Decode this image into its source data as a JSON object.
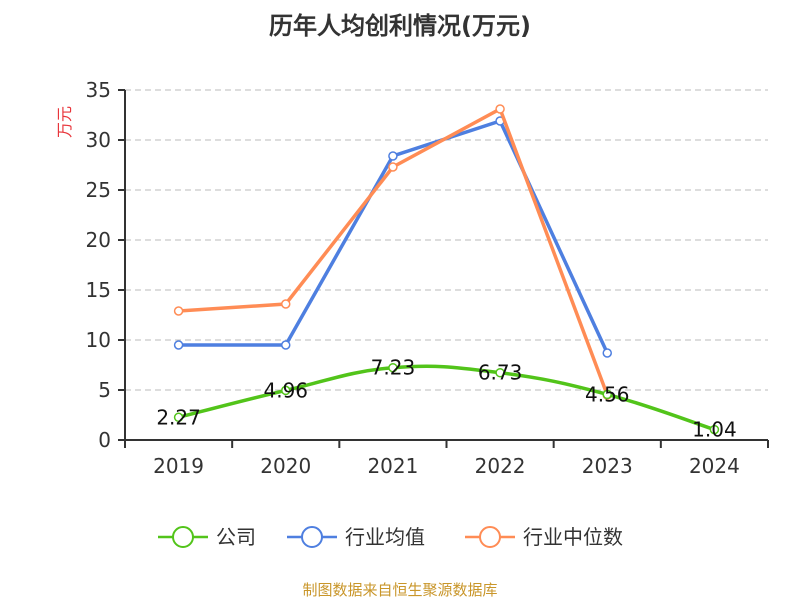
{
  "chart_data": {
    "type": "line",
    "title": "历年人均创利情况(万元)",
    "ylabel": "万元",
    "categories": [
      "2019",
      "2020",
      "2021",
      "2022",
      "2023",
      "2024"
    ],
    "ylim": [
      0,
      35
    ],
    "yticks": [
      0,
      5,
      10,
      15,
      20,
      25,
      30,
      35
    ],
    "grid": true,
    "legend_position": "bottom",
    "series": [
      {
        "name": "公司",
        "color": "#52c41a",
        "smooth": true,
        "show_labels": true,
        "values": [
          2.27,
          4.96,
          7.23,
          6.73,
          4.56,
          1.04
        ]
      },
      {
        "name": "行业均值",
        "color": "#4e7fe0",
        "values": [
          9.5,
          9.5,
          28.4,
          31.9,
          8.7,
          null
        ]
      },
      {
        "name": "行业中位数",
        "color": "#ff8c55",
        "values": [
          12.9,
          13.6,
          27.3,
          33.1,
          4.5,
          null
        ]
      }
    ]
  },
  "source": "制图数据来自恒生聚源数据库"
}
